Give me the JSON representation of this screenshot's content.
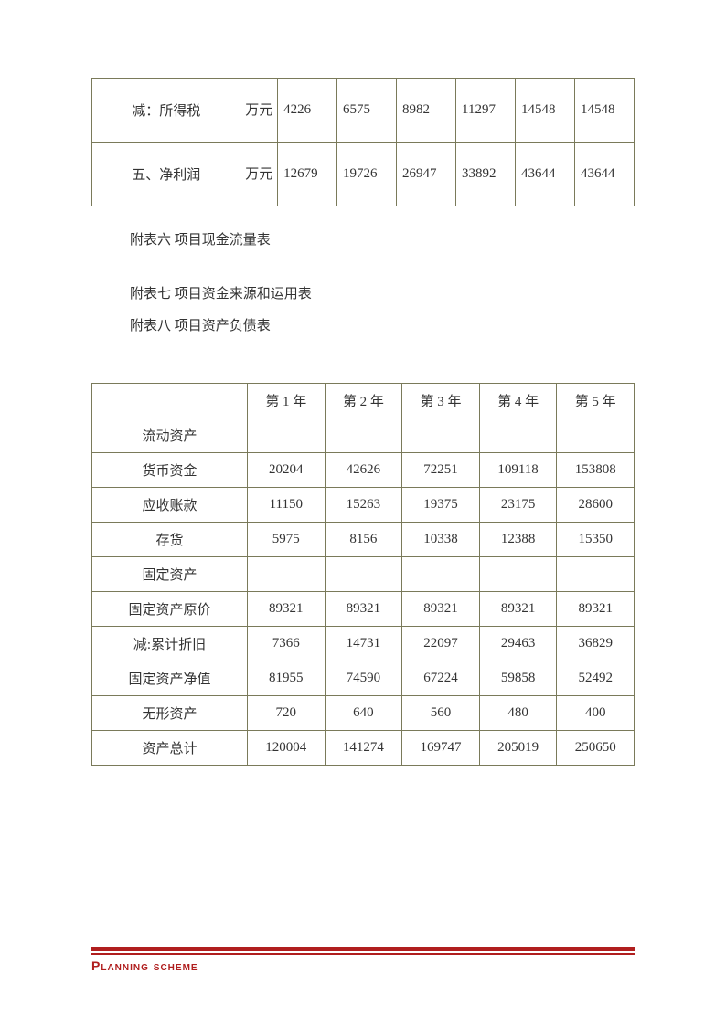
{
  "table1": {
    "rows": [
      {
        "label": "减：所得税",
        "unit": "万元",
        "vals": [
          "4226",
          "6575",
          "8982",
          "11297",
          "14548",
          "14548"
        ]
      },
      {
        "label": "五、净利润",
        "unit": "万元",
        "vals": [
          "12679",
          "19726",
          "26947",
          "33892",
          "43644",
          "43644"
        ]
      }
    ]
  },
  "captions": {
    "c6": "附表六 项目现金流量表",
    "c7": "附表七 项目资金来源和运用表",
    "c8": "附表八 项目资产负债表"
  },
  "table2": {
    "headers": [
      "",
      "第 1 年",
      "第 2 年",
      "第 3 年",
      "第 4 年",
      "第 5 年"
    ],
    "rows": [
      {
        "label": "流动资产",
        "vals": [
          "",
          "",
          "",
          "",
          ""
        ]
      },
      {
        "label": "货币资金",
        "vals": [
          "20204",
          "42626",
          "72251",
          "109118",
          "153808"
        ]
      },
      {
        "label": "应收账款",
        "vals": [
          "11150",
          "15263",
          "19375",
          "23175",
          "28600"
        ]
      },
      {
        "label": "存货",
        "vals": [
          "5975",
          "8156",
          "10338",
          "12388",
          "15350"
        ]
      },
      {
        "label": "固定资产",
        "vals": [
          "",
          "",
          "",
          "",
          ""
        ]
      },
      {
        "label": "固定资产原价",
        "vals": [
          "89321",
          "89321",
          "89321",
          "89321",
          "89321"
        ]
      },
      {
        "label": "减:累计折旧",
        "vals": [
          "7366",
          "14731",
          "22097",
          "29463",
          "36829"
        ]
      },
      {
        "label": "固定资产净值",
        "vals": [
          "81955",
          "74590",
          "67224",
          "59858",
          "52492"
        ]
      },
      {
        "label": "无形资产",
        "vals": [
          "720",
          "640",
          "560",
          "480",
          "400"
        ]
      },
      {
        "label": "资产总计",
        "vals": [
          "120004",
          "141274",
          "169747",
          "205019",
          "250650"
        ]
      }
    ]
  },
  "footer": {
    "text": "Planning scheme"
  },
  "colors": {
    "accent": "#b01e1e",
    "border": "#7a7a5a",
    "text": "#333333",
    "bg": "#ffffff"
  }
}
